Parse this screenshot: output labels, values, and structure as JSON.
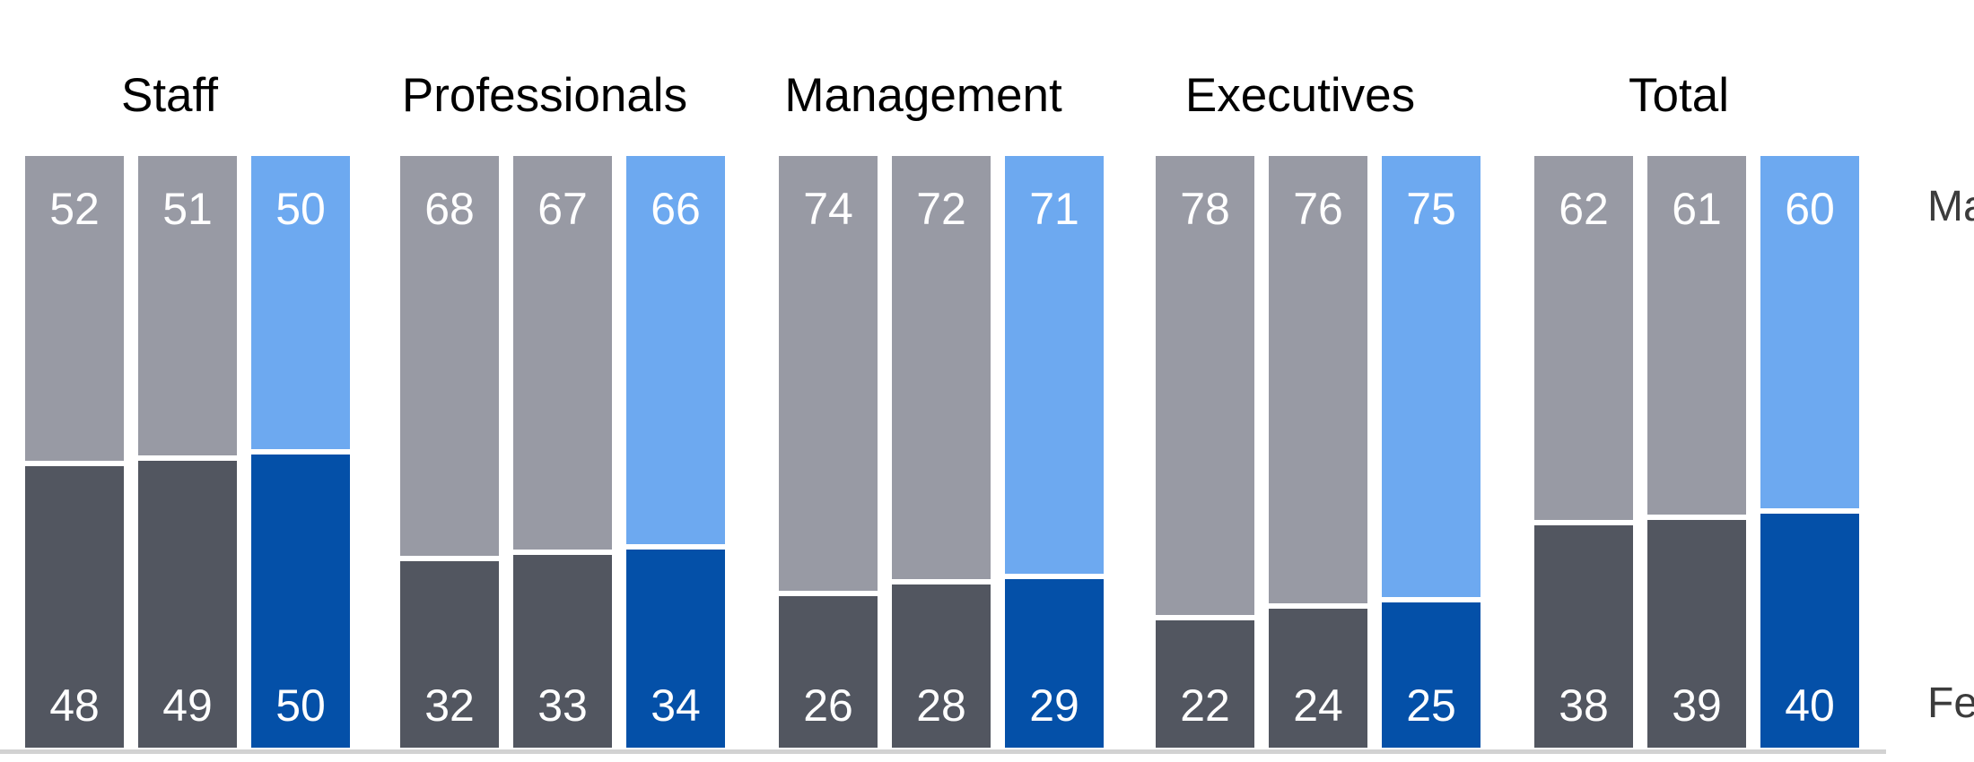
{
  "chart_data": {
    "type": "bar",
    "variant": "100-percent-stacked, 3 bars per category, third bar highlighted",
    "title": "",
    "categories": [
      "Staff",
      "Professionals",
      "Management",
      "Executives",
      "Total"
    ],
    "bars_per_category": 3,
    "highlighted_bar_index": 2,
    "series": [
      {
        "name": "Male",
        "stack_position": "top",
        "values": [
          [
            52,
            51,
            50
          ],
          [
            68,
            67,
            66
          ],
          [
            74,
            72,
            71
          ],
          [
            78,
            76,
            75
          ],
          [
            62,
            61,
            60
          ]
        ]
      },
      {
        "name": "Female",
        "stack_position": "bottom",
        "values": [
          [
            48,
            49,
            50
          ],
          [
            32,
            33,
            34
          ],
          [
            26,
            28,
            29
          ],
          [
            22,
            24,
            25
          ],
          [
            38,
            39,
            40
          ]
        ]
      }
    ],
    "ylim": [
      0,
      100
    ],
    "grid": false,
    "value_labels": "inside bar ends, white",
    "series_labels_position": "right edge, clipped by image border",
    "colors": {
      "male_regular": "#989AA4",
      "male_highlight": "#6DA9F0",
      "female_regular": "#525660",
      "female_highlight": "#0450A8",
      "value_text": "#FFFFFF",
      "category_title_text": "#000000",
      "series_label_text": "#3C3C3C",
      "baseline": "#D2D2D2",
      "background": "#FFFFFF"
    }
  }
}
